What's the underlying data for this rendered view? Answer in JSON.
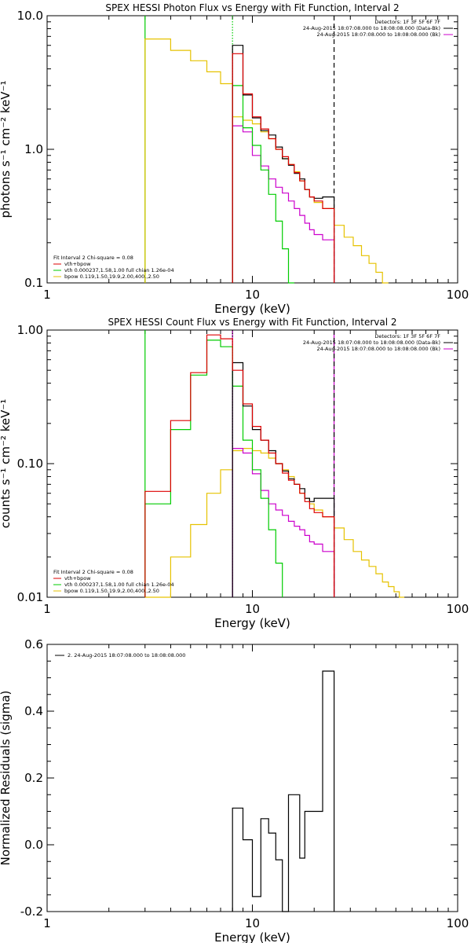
{
  "colors": {
    "data": "#000000",
    "total": "#dd0000",
    "vth": "#00cc00",
    "bpow": "#e6c200",
    "bk": "#cc00cc",
    "marker_green": "#00cc00",
    "marker_purple": "#cc00cc"
  },
  "chart_data": [
    {
      "type": "line",
      "title": "SPEX HESSI Photon Flux vs Energy with Fit Function, Interval 2",
      "xlabel": "Energy (keV)",
      "ylabel": "photons s⁻¹ cm⁻² keV⁻¹",
      "xscale": "log",
      "yscale": "log",
      "xlim": [
        1,
        100
      ],
      "ylim": [
        0.1,
        10
      ],
      "xticks": [
        "1",
        "10",
        "100"
      ],
      "yticks": [
        {
          "v": 0.1,
          "label": "0.1"
        },
        {
          "v": 1,
          "label": "1.0"
        },
        {
          "v": 10,
          "label": "10.0"
        }
      ],
      "step": true,
      "edges": [
        3,
        4,
        5,
        6,
        7,
        8,
        9,
        10,
        11,
        12,
        13,
        14,
        15,
        16,
        17,
        18,
        19,
        20,
        22,
        25,
        28,
        31,
        34,
        37,
        40,
        43,
        46,
        49
      ],
      "series": [
        {
          "name": "data",
          "color": "#000000",
          "values": [
            null,
            null,
            null,
            null,
            null,
            6.0,
            2.55,
            1.72,
            1.38,
            1.28,
            1.04,
            0.85,
            0.76,
            0.66,
            0.6,
            0.5,
            0.44,
            0.43,
            0.44,
            null,
            null,
            null,
            null,
            null,
            null,
            null,
            null
          ]
        },
        {
          "name": "vth+bpow",
          "color": "#dd0000",
          "values": [
            null,
            null,
            null,
            null,
            null,
            5.2,
            2.6,
            1.75,
            1.42,
            1.2,
            1.0,
            0.88,
            0.77,
            0.67,
            0.58,
            0.5,
            0.44,
            0.41,
            0.36,
            null,
            null,
            null,
            null,
            null,
            null,
            null,
            null
          ]
        },
        {
          "name": "vth",
          "color": "#00cc00",
          "values": [
            null,
            null,
            null,
            null,
            null,
            3.0,
            1.45,
            1.07,
            0.7,
            0.46,
            0.29,
            0.18,
            0.1,
            null,
            null,
            null,
            null,
            null,
            null,
            null,
            null,
            null,
            null,
            null,
            null,
            null,
            null
          ]
        },
        {
          "name": "bpow",
          "color": "#e6c200",
          "values": [
            6.7,
            5.5,
            4.6,
            3.8,
            3.1,
            1.75,
            1.65,
            1.55,
            1.35,
            1.2,
            1.0,
            0.85,
            0.77,
            0.68,
            0.58,
            0.5,
            0.44,
            0.4,
            0.36,
            0.27,
            0.22,
            0.19,
            0.16,
            0.14,
            0.12,
            0.1,
            null
          ]
        },
        {
          "name": "bk",
          "color": "#cc00cc",
          "values": [
            null,
            null,
            null,
            null,
            null,
            1.5,
            1.35,
            0.9,
            0.75,
            0.6,
            0.52,
            0.47,
            0.41,
            0.36,
            0.32,
            0.28,
            0.25,
            0.23,
            0.21,
            null,
            null,
            null,
            null,
            null,
            null,
            null,
            null
          ]
        }
      ],
      "vlines": [
        {
          "x": 3,
          "color": "#00cc00",
          "style": "solid"
        },
        {
          "x": 8,
          "color": "#00cc00",
          "style": "dotted"
        },
        {
          "x": 25,
          "color": "#000000",
          "style": "dashed"
        }
      ],
      "legend_tr": [
        {
          "text": "Detectors: 1F 3F 5F 6F 7F",
          "color": null
        },
        {
          "text": "24-Aug-2015 18:07:08.000 to 18:08:08.000 (Data-Bk)",
          "color": "#000000"
        },
        {
          "text": "24-Aug-2015 18:07:08.000 to 18:08:08.000 (Bk)",
          "color": "#cc00cc"
        }
      ],
      "legend_bl": [
        {
          "text": "Fit Interval 2   Chi-square = 0.08",
          "color": null
        },
        {
          "text": "vth+bpow",
          "color": "#dd0000"
        },
        {
          "text": "vth 0.000237,1.58,1.00  full chian 1.26e-04",
          "color": "#00cc00"
        },
        {
          "text": "bpow 0.119,1.50,19.9,2.00,400.,2.50",
          "color": "#e6c200"
        }
      ]
    },
    {
      "type": "line",
      "title": "SPEX HESSI Count Flux vs Energy with Fit Function, Interval 2",
      "xlabel": "Energy (keV)",
      "ylabel": "counts s⁻¹ cm⁻² keV⁻¹",
      "xscale": "log",
      "yscale": "log",
      "xlim": [
        1,
        100
      ],
      "ylim": [
        0.01,
        1
      ],
      "xticks": [
        "1",
        "10",
        "100"
      ],
      "yticks": [
        {
          "v": 0.01,
          "label": "0.01"
        },
        {
          "v": 0.1,
          "label": "0.10"
        },
        {
          "v": 1,
          "label": "1.00"
        }
      ],
      "step": true,
      "edges": [
        3,
        4,
        5,
        6,
        7,
        8,
        9,
        10,
        11,
        12,
        13,
        14,
        15,
        16,
        17,
        18,
        19,
        20,
        22,
        25,
        28,
        31,
        34,
        37,
        40,
        43,
        46,
        49,
        52,
        55
      ],
      "series": [
        {
          "name": "data",
          "color": "#000000",
          "values": [
            null,
            null,
            null,
            null,
            null,
            0.57,
            0.27,
            0.18,
            0.15,
            0.125,
            0.1,
            0.088,
            0.077,
            0.07,
            0.065,
            0.055,
            0.052,
            0.055,
            0.055,
            null,
            null,
            null,
            null,
            null,
            null,
            null,
            null,
            null,
            null
          ]
        },
        {
          "name": "vth+bpow",
          "color": "#dd0000",
          "values": [
            0.062,
            0.21,
            0.48,
            0.92,
            0.86,
            0.5,
            0.28,
            0.19,
            0.15,
            0.12,
            0.1,
            0.085,
            0.075,
            0.07,
            0.06,
            0.052,
            0.046,
            0.043,
            0.04,
            null,
            null,
            null,
            null,
            null,
            null,
            null,
            null,
            null,
            null
          ]
        },
        {
          "name": "vth",
          "color": "#00cc00",
          "values": [
            0.05,
            0.18,
            0.46,
            0.84,
            0.75,
            0.38,
            0.15,
            0.09,
            0.055,
            0.032,
            0.018,
            null,
            null,
            null,
            null,
            null,
            null,
            null,
            null,
            null,
            null,
            null,
            null,
            null,
            null,
            null,
            null,
            null,
            null
          ]
        },
        {
          "name": "bpow",
          "color": "#e6c200",
          "values": [
            0.01,
            0.02,
            0.035,
            0.06,
            0.09,
            0.125,
            0.13,
            0.125,
            0.12,
            0.11,
            0.1,
            0.09,
            0.08,
            0.07,
            0.06,
            0.055,
            0.05,
            0.045,
            0.04,
            0.033,
            0.027,
            0.022,
            0.019,
            0.017,
            0.015,
            0.013,
            0.012,
            0.011,
            0.01
          ]
        },
        {
          "name": "bk",
          "color": "#cc00cc",
          "values": [
            null,
            null,
            null,
            null,
            null,
            0.13,
            0.12,
            0.084,
            0.063,
            0.05,
            0.045,
            0.041,
            0.037,
            0.034,
            0.032,
            0.029,
            0.026,
            0.025,
            0.022,
            null,
            null,
            null,
            null,
            null,
            null,
            null,
            null,
            null,
            null
          ]
        }
      ],
      "vlines": [
        {
          "x": 3,
          "color": "#00cc00",
          "style": "solid"
        },
        {
          "x": 8,
          "color": "#cc00cc",
          "style": "solid"
        },
        {
          "x": 8,
          "color": "#000000",
          "style": "dotted"
        },
        {
          "x": 25,
          "color": "#cc00cc",
          "style": "solid"
        },
        {
          "x": 25,
          "color": "#000000",
          "style": "dashed"
        }
      ],
      "legend_tr": [
        {
          "text": "Detectors: 1F 3F 5F 6F 7F",
          "color": null
        },
        {
          "text": "24-Aug-2015 18:07:08.000 to 18:08:08.000 (Data-Bk)",
          "color": "#000000"
        },
        {
          "text": "24-Aug-2015 18:07:08.000 to 18:08:08.000 (Bk)",
          "color": "#cc00cc"
        }
      ],
      "legend_bl": [
        {
          "text": "Fit Interval 2   Chi-square = 0.08",
          "color": null
        },
        {
          "text": "vth+bpow",
          "color": "#dd0000"
        },
        {
          "text": "vth 0.000237,1.58,1.00  full chian 1.26e-04",
          "color": "#00cc00"
        },
        {
          "text": "bpow 0.119,1.50,19.9,2.00,400.,2.50",
          "color": "#e6c200"
        }
      ]
    },
    {
      "type": "line",
      "title": "",
      "xlabel": "Energy (keV)",
      "ylabel": "Normalized Residuals (sigma)",
      "xscale": "log",
      "yscale": "linear",
      "xlim": [
        1,
        100
      ],
      "ylim": [
        -0.2,
        0.6
      ],
      "xticks": [
        "1",
        "10",
        "100"
      ],
      "yticks": [
        {
          "v": -0.2,
          "label": "-0.2"
        },
        {
          "v": 0,
          "label": "0.0"
        },
        {
          "v": 0.2,
          "label": "0.2"
        },
        {
          "v": 0.4,
          "label": "0.4"
        },
        {
          "v": 0.6,
          "label": "0.6"
        }
      ],
      "step": true,
      "edges": [
        8,
        9,
        10,
        11,
        12,
        13,
        14,
        15,
        16,
        17,
        18,
        19,
        20,
        22,
        25
      ],
      "series": [
        {
          "name": "2. 24-Aug-2015 18:07:08.000 to 18:08:08.000",
          "color": "#000000",
          "values": [
            0.11,
            0.015,
            -0.155,
            0.078,
            0.035,
            -0.045,
            -0.2,
            0.15,
            0.15,
            -0.04,
            0.1,
            0.1,
            0.1,
            0.52
          ]
        }
      ],
      "vlines": [],
      "legend_tr": [],
      "legend_tl": [
        {
          "text": "2. 24-Aug-2015 18:07:08.000 to 18:08:08.000",
          "color": "#000000"
        }
      ],
      "legend_bl": []
    }
  ]
}
